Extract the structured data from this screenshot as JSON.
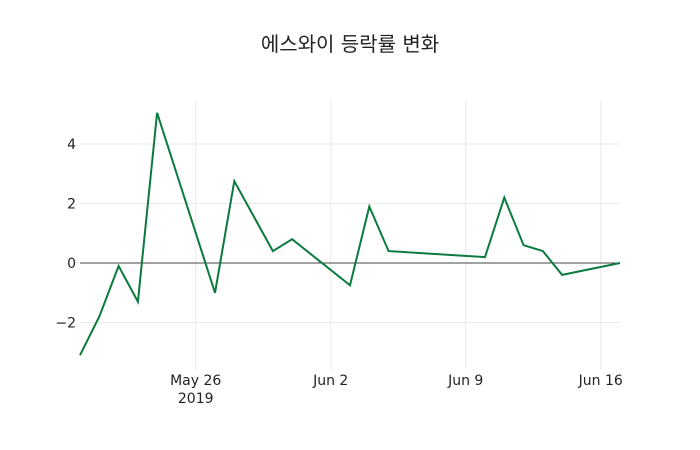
{
  "chart_data": {
    "type": "line",
    "title": "에스와이 등락률 변화",
    "xlabel": "",
    "ylabel": "",
    "x": [
      "2019-05-20",
      "2019-05-21",
      "2019-05-22",
      "2019-05-23",
      "2019-05-24",
      "2019-05-27",
      "2019-05-28",
      "2019-05-30",
      "2019-05-31",
      "2019-06-03",
      "2019-06-04",
      "2019-06-05",
      "2019-06-10",
      "2019-06-11",
      "2019-06-12",
      "2019-06-13",
      "2019-06-14",
      "2019-06-17"
    ],
    "series": [
      {
        "name": "등락률",
        "color": "#0a7a3e",
        "values": [
          -3.1,
          -1.8,
          -0.1,
          -1.3,
          5.05,
          -1.0,
          2.75,
          0.4,
          0.8,
          -0.75,
          1.9,
          0.4,
          0.2,
          2.2,
          0.6,
          0.4,
          -0.4,
          0.0
        ]
      }
    ],
    "ylim": [
      -3.4,
      5.5
    ],
    "y_ticks": [
      {
        "value": 4,
        "label": "4"
      },
      {
        "value": 2,
        "label": "2"
      },
      {
        "value": 0,
        "label": "0"
      },
      {
        "value": -2,
        "label": "−2"
      }
    ],
    "x_ticks": [
      {
        "date": "2019-05-26",
        "label": "May 26",
        "sublabel": "2019"
      },
      {
        "date": "2019-06-02",
        "label": "Jun 2",
        "sublabel": ""
      },
      {
        "date": "2019-06-09",
        "label": "Jun 9",
        "sublabel": ""
      },
      {
        "date": "2019-06-16",
        "label": "Jun 16",
        "sublabel": ""
      }
    ],
    "grid": true,
    "zeroline": true,
    "legend": "none"
  }
}
